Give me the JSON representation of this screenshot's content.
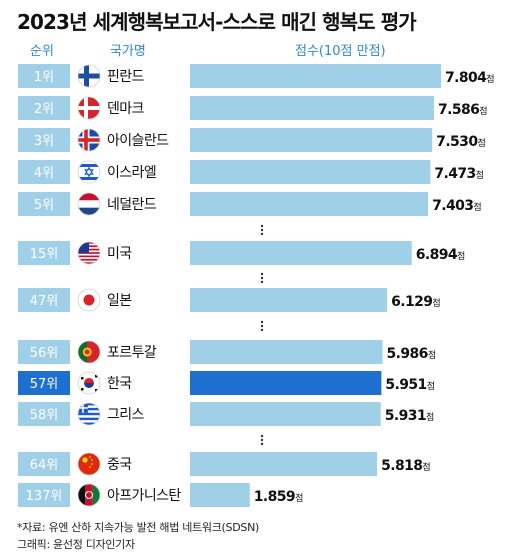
{
  "title": "2023년 세계행복보고서-스스로 매긴 행복도 평가",
  "headers": {
    "rank": "순위",
    "country": "국가명",
    "score": "점수(10점 만점)"
  },
  "score_unit": "점",
  "footnote": {
    "source": "*자료: 유엔 산하 지속가능 발전 해법 네트워크(SDSN)",
    "credit": "그래픽: 윤선정 디자인기자"
  },
  "colors": {
    "rank_box": "#9fd0e8",
    "rank_box_highlight": "#1f6fd1",
    "bar": "#9fd0e8",
    "bar_highlight": "#1f6fd1",
    "header_text": "#2e8bc9"
  },
  "chart_data": {
    "type": "bar",
    "orientation": "horizontal",
    "title": "2023년 세계행복보고서-스스로 매긴 행복도 평가",
    "xlim": [
      0,
      8
    ],
    "grid": false,
    "highlight": "한국",
    "rows": [
      {
        "rank": "1위",
        "country": "핀란드",
        "value": 7.804,
        "label": "7.804",
        "flag": "finland-flag-icon"
      },
      {
        "rank": "2위",
        "country": "덴마크",
        "value": 7.586,
        "label": "7.586",
        "flag": "denmark-flag-icon"
      },
      {
        "rank": "3위",
        "country": "아이슬란드",
        "value": 7.53,
        "label": "7.530",
        "flag": "iceland-flag-icon"
      },
      {
        "rank": "4위",
        "country": "이스라엘",
        "value": 7.473,
        "label": "7.473",
        "flag": "israel-flag-icon"
      },
      {
        "rank": "5위",
        "country": "네덜란드",
        "value": 7.403,
        "label": "7.403",
        "flag": "netherlands-flag-icon"
      },
      {
        "rank": "15위",
        "country": "미국",
        "value": 6.894,
        "label": "6.894",
        "flag": "usa-flag-icon"
      },
      {
        "rank": "47위",
        "country": "일본",
        "value": 6.129,
        "label": "6.129",
        "flag": "japan-flag-icon"
      },
      {
        "rank": "56위",
        "country": "포르투갈",
        "value": 5.986,
        "label": "5.986",
        "flag": "portugal-flag-icon"
      },
      {
        "rank": "57위",
        "country": "한국",
        "value": 5.951,
        "label": "5.951",
        "flag": "korea-flag-icon",
        "highlight": true
      },
      {
        "rank": "58위",
        "country": "그리스",
        "value": 5.931,
        "label": "5.931",
        "flag": "greece-flag-icon"
      },
      {
        "rank": "64위",
        "country": "중국",
        "value": 5.818,
        "label": "5.818",
        "flag": "china-flag-icon"
      },
      {
        "rank": "137위",
        "country": "아프가니스탄",
        "value": 1.859,
        "label": "1.859",
        "flag": "afghanistan-flag-icon"
      }
    ]
  }
}
